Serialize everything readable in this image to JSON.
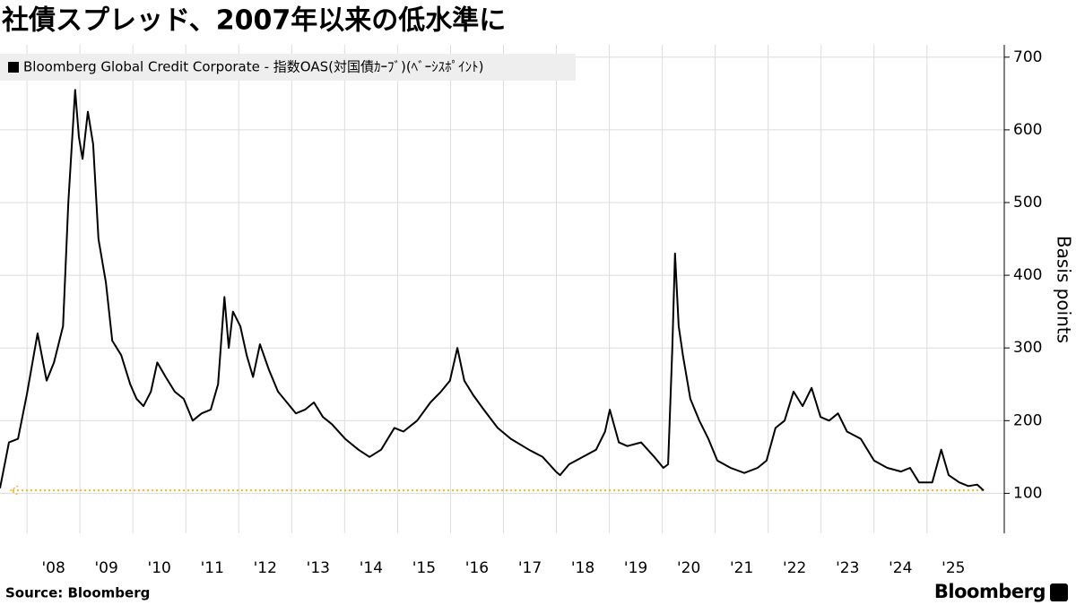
{
  "chart_data": {
    "type": "line",
    "title": "社債スプレッド、2007年以来の低水準に",
    "y_axis_label": "Basis points",
    "source": "Source: Bloomberg",
    "logo": "Bloomberg",
    "grid": true,
    "legend": "top-left",
    "xlim": [
      2007.49,
      2026.46
    ],
    "ylim": [
      45,
      717
    ],
    "yticks": [
      100,
      200,
      300,
      400,
      500,
      600,
      700
    ],
    "xticks": [
      {
        "value": 2008,
        "label": "'08"
      },
      {
        "value": 2009,
        "label": "'09"
      },
      {
        "value": 2010,
        "label": "'10"
      },
      {
        "value": 2011,
        "label": "'11"
      },
      {
        "value": 2012,
        "label": "'12"
      },
      {
        "value": 2013,
        "label": "'13"
      },
      {
        "value": 2014,
        "label": "'14"
      },
      {
        "value": 2015,
        "label": "'15"
      },
      {
        "value": 2016,
        "label": "'16"
      },
      {
        "value": 2017,
        "label": "'17"
      },
      {
        "value": 2018,
        "label": "'18"
      },
      {
        "value": 2019,
        "label": "'19"
      },
      {
        "value": 2020,
        "label": "'20"
      },
      {
        "value": 2021,
        "label": "'21"
      },
      {
        "value": 2022,
        "label": "'22"
      },
      {
        "value": 2023,
        "label": "'23"
      },
      {
        "value": 2024,
        "label": "'24"
      },
      {
        "value": 2025,
        "label": "'25"
      }
    ],
    "reference_line": {
      "value": 104,
      "color": "#f2b431"
    },
    "x": [
      2007.49,
      2007.66,
      2007.83,
      2008.0,
      2008.2,
      2008.37,
      2008.51,
      2008.68,
      2008.78,
      2008.91,
      2008.98,
      2009.05,
      2009.15,
      2009.25,
      2009.35,
      2009.49,
      2009.61,
      2009.78,
      2009.95,
      2010.07,
      2010.2,
      2010.34,
      2010.46,
      2010.62,
      2010.79,
      2010.96,
      2011.13,
      2011.3,
      2011.47,
      2011.61,
      2011.73,
      2011.81,
      2011.89,
      2012.03,
      2012.15,
      2012.27,
      2012.4,
      2012.57,
      2012.74,
      2012.91,
      2013.08,
      2013.25,
      2013.42,
      2013.59,
      2013.76,
      2014.01,
      2014.26,
      2014.47,
      2014.69,
      2014.94,
      2015.11,
      2015.37,
      2015.62,
      2015.82,
      2015.99,
      2016.13,
      2016.26,
      2016.43,
      2016.63,
      2016.89,
      2017.14,
      2017.48,
      2017.74,
      2017.99,
      2018.07,
      2018.24,
      2018.5,
      2018.75,
      2018.92,
      2019.01,
      2019.18,
      2019.34,
      2019.6,
      2019.85,
      2020.02,
      2020.11,
      2020.19,
      2020.24,
      2020.31,
      2020.39,
      2020.53,
      2020.7,
      2020.87,
      2021.04,
      2021.29,
      2021.55,
      2021.8,
      2021.97,
      2022.14,
      2022.31,
      2022.48,
      2022.65,
      2022.82,
      2022.99,
      2023.15,
      2023.32,
      2023.49,
      2023.75,
      2024.0,
      2024.25,
      2024.51,
      2024.68,
      2024.85,
      2025.1,
      2025.27,
      2025.41,
      2025.61,
      2025.78,
      2025.95,
      2026.07
    ],
    "series": [
      {
        "name": "Bloomberg Global Credit Corporate - 指数OAS(対国債ｶｰﾌﾞ)(ﾍﾞｰｼｽﾎﾟｲﾝﾄ)",
        "color": "#000000",
        "values": [
          107,
          170,
          175,
          237,
          320,
          255,
          280,
          330,
          500,
          655,
          590,
          560,
          625,
          580,
          450,
          390,
          310,
          290,
          250,
          230,
          220,
          240,
          280,
          260,
          240,
          230,
          200,
          210,
          215,
          250,
          370,
          300,
          350,
          330,
          290,
          260,
          305,
          270,
          240,
          225,
          210,
          215,
          225,
          205,
          195,
          175,
          160,
          150,
          160,
          190,
          185,
          200,
          225,
          240,
          255,
          300,
          255,
          235,
          215,
          190,
          175,
          160,
          150,
          130,
          125,
          140,
          150,
          160,
          185,
          215,
          170,
          165,
          170,
          150,
          135,
          140,
          300,
          430,
          330,
          290,
          230,
          200,
          175,
          145,
          135,
          128,
          135,
          145,
          190,
          200,
          240,
          220,
          245,
          205,
          200,
          210,
          185,
          175,
          145,
          135,
          130,
          135,
          115,
          115,
          160,
          125,
          115,
          110,
          112,
          104
        ]
      }
    ]
  }
}
